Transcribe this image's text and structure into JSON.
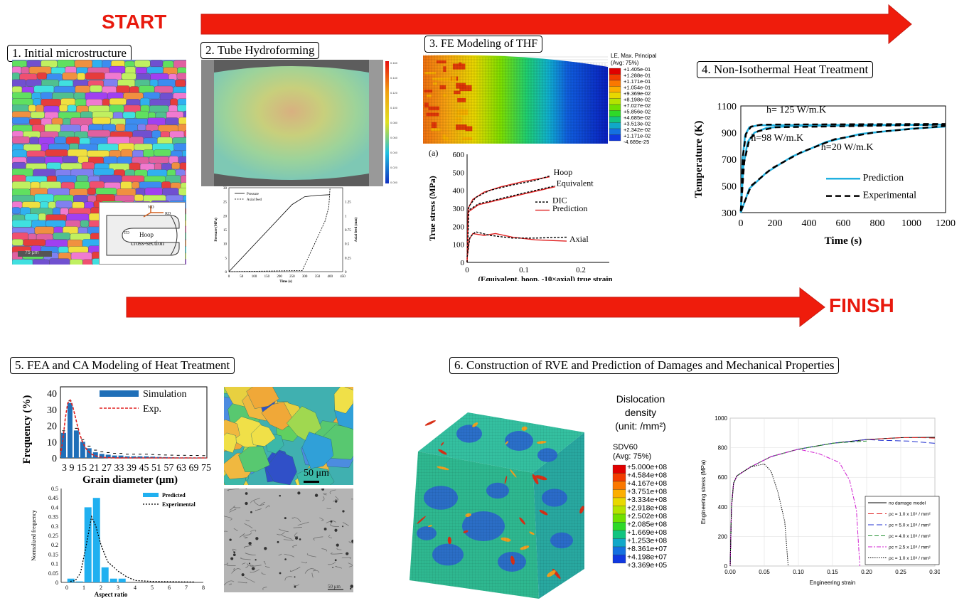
{
  "arrows": {
    "start": "START",
    "finish": "FINISH"
  },
  "steps": [
    "1. Initial microstructure",
    "2. Tube Hydroforming",
    "3. FE Modeling of THF",
    "4. Non-Isothermal Heat Treatment",
    "5. FEA and CA Modeling of Heat Treatment",
    "6. Construction of RVE and Prediction of Damages and Mechanical Properties"
  ],
  "panel1": {
    "inset_labels": {
      "nd": "ND",
      "rd": "RD",
      "td": "TD",
      "hoop": "Hoop",
      "cross": "cross-section"
    },
    "scale": "75 μm"
  },
  "panel2": {
    "legend": [
      "Pressure",
      "Axial feed"
    ],
    "ylabel_left": "Pressure (MPa)",
    "ylabel_right": "Axial feed (mm)",
    "xlabel": "Time (s)",
    "y_ticks": [
      "0",
      "5",
      "10",
      "15",
      "20",
      "25",
      "30"
    ],
    "y2_ticks": [
      "0",
      "0.25",
      "0.5",
      "0.75",
      "1",
      "1.25"
    ],
    "x_ticks": [
      "0",
      "50",
      "100",
      "150",
      "200",
      "250",
      "300",
      "350",
      "400",
      "450"
    ],
    "colorbar_ticks": [
      "0.160",
      "0.140",
      "0.120",
      "0.100",
      "0.080",
      "0.060",
      "0.040",
      "0.020",
      "0.000"
    ]
  },
  "panel3": {
    "contour_title": [
      "LE, Max. Principal",
      "(Avg: 75%)"
    ],
    "contour_values": [
      "+1.405e-01",
      "+1.288e-01",
      "+1.171e-01",
      "+1.054e-01",
      "+9.369e-02",
      "+8.198e-02",
      "+7.027e-02",
      "+5.856e-02",
      "+4.685e-02",
      "+3.513e-02",
      "+2.342e-02",
      "+1.171e-02",
      "-4.689e-25"
    ],
    "contour_colors": [
      "#e00000",
      "#f23c00",
      "#fa7800",
      "#fcae00",
      "#e8d800",
      "#b4e300",
      "#70e000",
      "#2ed928",
      "#12c480",
      "#10a8c8",
      "#1470e0",
      "#1038e0",
      "#0818c8"
    ],
    "chart_label": "(a)",
    "ylabel": "True stress (MPa)",
    "xlabel": "(Equivalent, hoop, -10×axial) true strain",
    "y_ticks": [
      "0",
      "100",
      "200",
      "300",
      "400",
      "500",
      "600"
    ],
    "x_ticks": [
      "0",
      "0.1",
      "0.2"
    ],
    "curve_labels": [
      "Hoop",
      "Equivalent",
      "Axial"
    ],
    "legend": [
      "DIC",
      "Prediction"
    ]
  },
  "panel4": {
    "ylabel": "Temperature (K)",
    "xlabel": "Time (s)",
    "y_ticks": [
      "300",
      "500",
      "700",
      "900",
      "1100"
    ],
    "x_ticks": [
      "0",
      "200",
      "400",
      "600",
      "800",
      "1000",
      "1200"
    ],
    "annotations": [
      "h= 125 W/m.K",
      "h=98 W/m.K",
      "h=20 W/m.K"
    ],
    "legend": [
      "Prediction",
      "Experimental"
    ]
  },
  "panel5": {
    "hist1": {
      "legend": [
        "Simulation",
        "Exp."
      ],
      "ylabel": "Frequency (%)",
      "xlabel": "Grain diameter (μm)",
      "y_ticks": [
        "0",
        "10",
        "20",
        "30",
        "40"
      ],
      "x_tick_text": "3  9  15 21 27 33 39 45 51 57 63 69 75",
      "values": [
        15.5,
        34,
        17,
        10,
        6,
        3.5,
        2.5,
        2,
        1.5,
        1.5,
        1,
        1,
        1,
        1,
        0.8,
        0.6,
        0.5,
        0.4,
        0.3,
        0.3,
        0.2,
        0.2,
        0.1
      ]
    },
    "hist2": {
      "legend": [
        "Predicted",
        "Experimental"
      ],
      "ylabel": "Normalized frequency",
      "xlabel": "Aspect ratio",
      "y_ticks": [
        "0",
        "0.05",
        "0.1",
        "0.15",
        "0.2",
        "0.25",
        "0.3",
        "0.35",
        "0.4",
        "0.45",
        "0.5"
      ],
      "x_ticks": [
        "0",
        "1",
        "2",
        "3",
        "4",
        "5",
        "6",
        "7",
        "8"
      ],
      "values": [
        0.02,
        0.005,
        0.4,
        0.45,
        0.08,
        0.02,
        0.02
      ]
    },
    "scale1": "50 μm",
    "scale2": "50 μm"
  },
  "panel6": {
    "density_title": [
      "Dislocation",
      "density",
      "(unit: /mm²)"
    ],
    "sdv_title": [
      "SDV60",
      "(Avg: 75%)"
    ],
    "sdv_values": [
      "+5.000e+08",
      "+4.584e+08",
      "+4.167e+08",
      "+3.751e+08",
      "+3.334e+08",
      "+2.918e+08",
      "+2.502e+08",
      "+2.085e+08",
      "+1.669e+08",
      "+1.253e+08",
      "+8.361e+07",
      "+4.198e+07",
      "+3.369e+05"
    ],
    "sdv_colors": [
      "#e00000",
      "#f23c00",
      "#fa7800",
      "#fcae00",
      "#e8d800",
      "#b4e300",
      "#70e000",
      "#2ed928",
      "#12c480",
      "#10a8c8",
      "#1470e0",
      "#1038e0",
      "#0818c8"
    ],
    "ylabel": "Engineering stress (MPa)",
    "xlabel": "Engineering strain",
    "y_ticks": [
      "0",
      "200",
      "400",
      "600",
      "800",
      "1000"
    ],
    "x_ticks": [
      "0.00",
      "0.05",
      "0.10",
      "0.15",
      "0.20",
      "0.25",
      "0.30"
    ],
    "legend": [
      "no damage model",
      "ρc = 1.0 x 10⁹ / mm²",
      "ρc = 5.0 x 10⁸ / mm²",
      "ρc = 4.0 x 10⁸ / mm²",
      "ρc = 2.5 x 10⁸ / mm²",
      "ρc = 1.0 x 10⁸ / mm²"
    ],
    "legend_colors": [
      "#000000",
      "#e02020",
      "#2030d0",
      "#209030",
      "#d020d0",
      "#000000"
    ]
  }
}
